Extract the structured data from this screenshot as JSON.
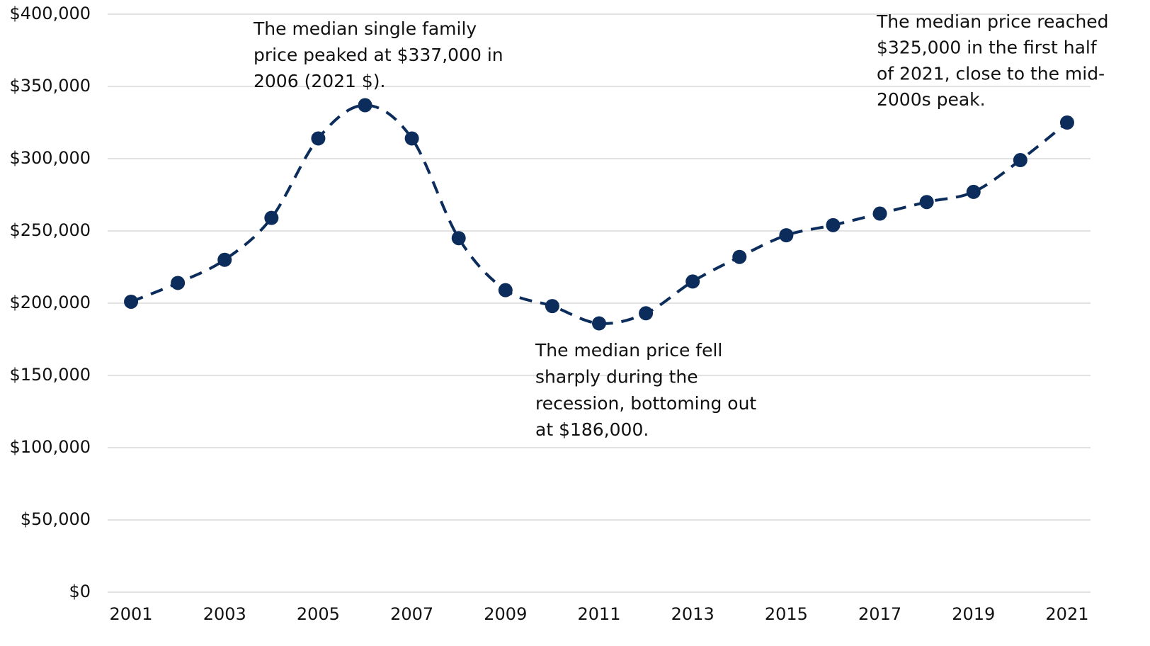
{
  "chart_data": {
    "type": "line",
    "x": [
      2001,
      2002,
      2003,
      2004,
      2005,
      2006,
      2007,
      2008,
      2009,
      2010,
      2011,
      2012,
      2013,
      2014,
      2015,
      2016,
      2017,
      2018,
      2019,
      2020,
      2021
    ],
    "series": [
      {
        "color": "#0c2d5c",
        "values": [
          201000,
          214000,
          230000,
          259000,
          314000,
          337000,
          314000,
          245000,
          209000,
          198000,
          186000,
          193000,
          215000,
          232000,
          247000,
          254000,
          262000,
          270000,
          277000,
          299000,
          325000
        ]
      }
    ],
    "xlim": [
      2000.5,
      2021.5
    ],
    "xticks": [
      2001,
      2003,
      2005,
      2007,
      2009,
      2011,
      2013,
      2015,
      2017,
      2019,
      2021
    ],
    "ylim": [
      0,
      400000
    ],
    "yticks": [
      {
        "value": 0,
        "label": "$0"
      },
      {
        "value": 50000,
        "label": "$50,000"
      },
      {
        "value": 100000,
        "label": "$100,000"
      },
      {
        "value": 150000,
        "label": "$150,000"
      },
      {
        "value": 200000,
        "label": "$200,000"
      },
      {
        "value": 250000,
        "label": "$250,000"
      },
      {
        "value": 300000,
        "label": "$300,000"
      },
      {
        "value": 350000,
        "label": "$350,000"
      },
      {
        "value": 400000,
        "label": "$400,000"
      }
    ],
    "grid": true,
    "annotations": [
      {
        "lines": [
          "The median single family",
          "price peaked at $337,000 in",
          "2006 (2021 $)."
        ]
      },
      {
        "lines": [
          "The median price fell",
          "sharply during the",
          "recession, bottoming out",
          "at $186,000."
        ]
      },
      {
        "lines": [
          "The median price reached",
          "$325,000 in the first half",
          "of 2021, close to the mid-",
          "2000s peak."
        ]
      }
    ]
  }
}
